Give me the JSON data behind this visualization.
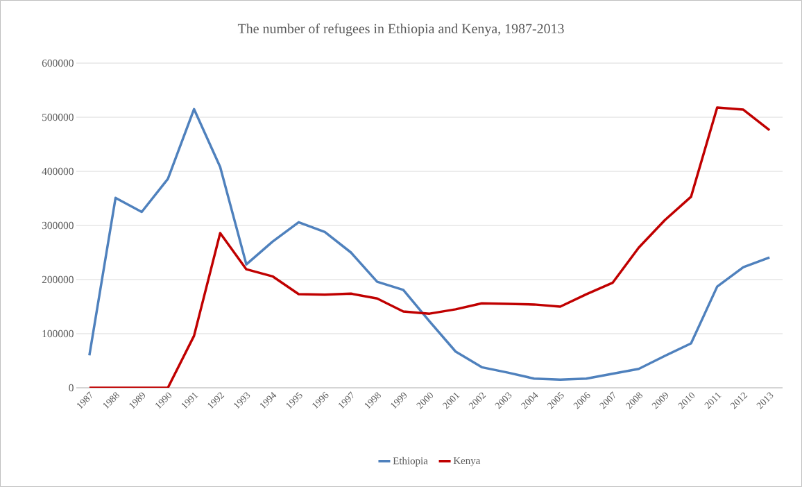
{
  "chart_data": {
    "type": "line",
    "title": "The number of refugees in Ethiopia and Kenya, 1987-2013",
    "categories": [
      "1987",
      "1988",
      "1989",
      "1990",
      "1991",
      "1992",
      "1993",
      "1994",
      "1995",
      "1996",
      "1997",
      "1998",
      "1999",
      "2000",
      "2001",
      "2002",
      "2003",
      "2004",
      "2005",
      "2006",
      "2007",
      "2008",
      "2009",
      "2010",
      "2011",
      "2012",
      "2013"
    ],
    "series": [
      {
        "name": "Ethiopia",
        "color": "#4f81bd",
        "values": [
          60000,
          351000,
          325000,
          386000,
          515000,
          408000,
          228000,
          270000,
          306000,
          288000,
          250000,
          196000,
          181000,
          123000,
          67000,
          38000,
          28000,
          17000,
          15000,
          17000,
          26000,
          35000,
          59000,
          82000,
          187000,
          223000,
          241000
        ]
      },
      {
        "name": "Kenya",
        "color": "#c00000",
        "values": [
          0,
          0,
          0,
          0,
          96000,
          286000,
          219000,
          206000,
          173000,
          172000,
          174000,
          165000,
          141000,
          137000,
          145000,
          156000,
          155000,
          154000,
          150000,
          173000,
          194000,
          259000,
          310000,
          353000,
          518000,
          514000,
          476000
        ]
      }
    ],
    "ylim": [
      0,
      600000
    ],
    "yticks": [
      0,
      100000,
      200000,
      300000,
      400000,
      500000,
      600000
    ],
    "grid": "y",
    "legend": "bottom",
    "marker": "none",
    "line_style": "solid"
  }
}
